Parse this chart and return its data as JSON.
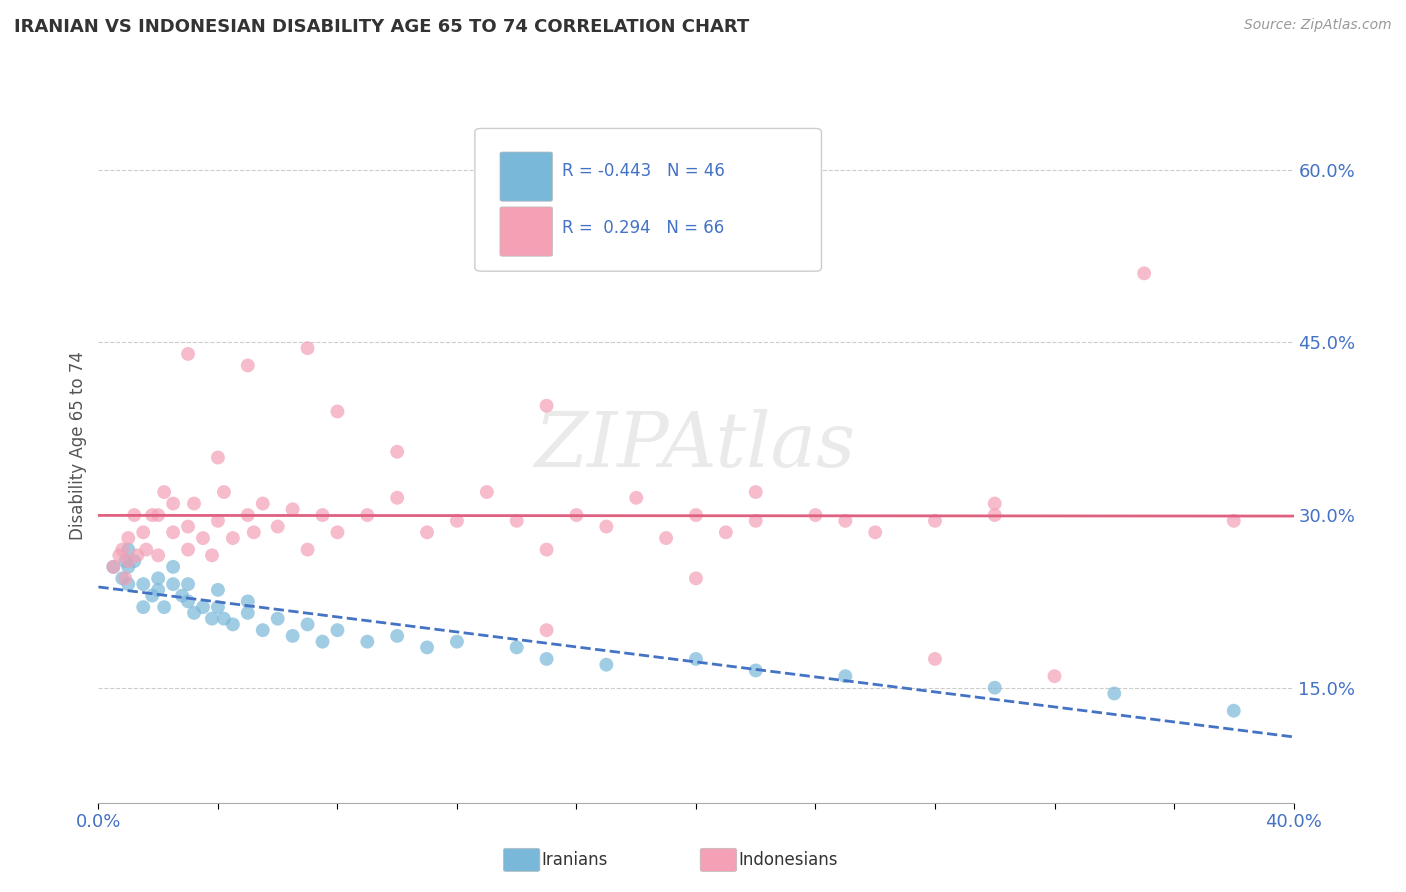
{
  "title": "IRANIAN VS INDONESIAN DISABILITY AGE 65 TO 74 CORRELATION CHART",
  "source": "Source: ZipAtlas.com",
  "ylabel": "Disability Age 65 to 74",
  "ytick_labels": [
    "15.0%",
    "30.0%",
    "45.0%",
    "60.0%"
  ],
  "ytick_values": [
    0.15,
    0.3,
    0.45,
    0.6
  ],
  "xlim": [
    0.0,
    0.4
  ],
  "ylim": [
    0.05,
    0.67
  ],
  "iranian_color": "#7ab8d9",
  "indonesian_color": "#f4a0b5",
  "iranian_line_color": "#4472c4",
  "indonesian_line_color": "#e06080",
  "watermark": "ZIPAtlas",
  "iranians_scatter_x": [
    0.005,
    0.008,
    0.009,
    0.01,
    0.01,
    0.01,
    0.012,
    0.015,
    0.015,
    0.018,
    0.02,
    0.02,
    0.022,
    0.025,
    0.025,
    0.028,
    0.03,
    0.03,
    0.032,
    0.035,
    0.038,
    0.04,
    0.04,
    0.042,
    0.045,
    0.05,
    0.05,
    0.055,
    0.06,
    0.065,
    0.07,
    0.075,
    0.08,
    0.09,
    0.1,
    0.11,
    0.12,
    0.14,
    0.15,
    0.17,
    0.2,
    0.22,
    0.25,
    0.3,
    0.34,
    0.38
  ],
  "iranians_scatter_y": [
    0.255,
    0.245,
    0.26,
    0.24,
    0.255,
    0.27,
    0.26,
    0.24,
    0.22,
    0.23,
    0.245,
    0.235,
    0.22,
    0.24,
    0.255,
    0.23,
    0.225,
    0.24,
    0.215,
    0.22,
    0.21,
    0.22,
    0.235,
    0.21,
    0.205,
    0.215,
    0.225,
    0.2,
    0.21,
    0.195,
    0.205,
    0.19,
    0.2,
    0.19,
    0.195,
    0.185,
    0.19,
    0.185,
    0.175,
    0.17,
    0.175,
    0.165,
    0.16,
    0.15,
    0.145,
    0.13
  ],
  "indonesians_scatter_x": [
    0.005,
    0.007,
    0.008,
    0.009,
    0.01,
    0.01,
    0.012,
    0.013,
    0.015,
    0.016,
    0.018,
    0.02,
    0.02,
    0.022,
    0.025,
    0.025,
    0.03,
    0.03,
    0.032,
    0.035,
    0.038,
    0.04,
    0.042,
    0.045,
    0.05,
    0.052,
    0.055,
    0.06,
    0.065,
    0.07,
    0.075,
    0.08,
    0.09,
    0.1,
    0.11,
    0.12,
    0.13,
    0.14,
    0.15,
    0.16,
    0.17,
    0.18,
    0.19,
    0.2,
    0.21,
    0.22,
    0.24,
    0.26,
    0.28,
    0.3,
    0.1,
    0.15,
    0.2,
    0.08,
    0.05,
    0.03,
    0.25,
    0.32,
    0.35,
    0.38,
    0.28,
    0.07,
    0.04,
    0.15,
    0.22,
    0.3
  ],
  "indonesians_scatter_y": [
    0.255,
    0.265,
    0.27,
    0.245,
    0.26,
    0.28,
    0.3,
    0.265,
    0.285,
    0.27,
    0.3,
    0.265,
    0.3,
    0.32,
    0.285,
    0.31,
    0.27,
    0.29,
    0.31,
    0.28,
    0.265,
    0.295,
    0.32,
    0.28,
    0.3,
    0.285,
    0.31,
    0.29,
    0.305,
    0.27,
    0.3,
    0.285,
    0.3,
    0.315,
    0.285,
    0.295,
    0.32,
    0.295,
    0.27,
    0.3,
    0.29,
    0.315,
    0.28,
    0.3,
    0.285,
    0.295,
    0.3,
    0.285,
    0.295,
    0.31,
    0.355,
    0.395,
    0.245,
    0.39,
    0.43,
    0.44,
    0.295,
    0.16,
    0.51,
    0.295,
    0.175,
    0.445,
    0.35,
    0.2,
    0.32,
    0.3
  ]
}
